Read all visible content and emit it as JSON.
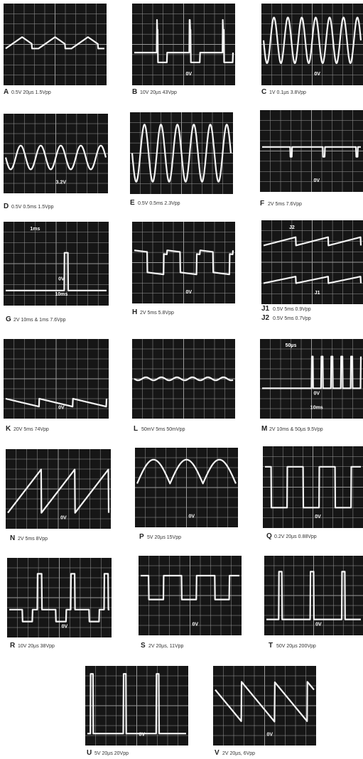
{
  "panels": [
    {
      "lines": [
        {
          "letter": "A",
          "text": "0.5V 20µs 1.5Vpp"
        }
      ],
      "labels": []
    },
    {
      "lines": [
        {
          "letter": "B",
          "text": "10V 20µs 43Vpp"
        }
      ],
      "labels": [
        "0V"
      ]
    },
    {
      "lines": [
        {
          "letter": "C",
          "text": "1V 0.1µs 3.8Vpp"
        }
      ],
      "labels": [
        "0V"
      ]
    },
    {
      "lines": [
        {
          "letter": "D",
          "text": "0.5V 0.5ms 1.5Vpp"
        }
      ],
      "labels": [
        "3.2V"
      ]
    },
    {
      "lines": [
        {
          "letter": "E",
          "text": "0.5V 0.5ms 2.3Vpp"
        }
      ],
      "labels": []
    },
    {
      "lines": [
        {
          "letter": "F",
          "text": "2V 5ms 7.6Vpp"
        }
      ],
      "labels": [
        "0V"
      ]
    },
    {
      "lines": [
        {
          "letter": "G",
          "text": "2V 10ms & 1ms 7.6Vpp"
        }
      ],
      "labels": [
        "10ms",
        "1ms",
        "0V"
      ]
    },
    {
      "lines": [
        {
          "letter": "H",
          "text": "2V 5ms 5.8Vpp"
        }
      ],
      "labels": [
        "0V"
      ]
    },
    {
      "lines": [
        {
          "letter": "J1",
          "text": "0.5V 5ms 0.9Vpp"
        },
        {
          "letter": "J2",
          "text": "0.5V 5ms 0.7Vpp"
        }
      ],
      "labels": [
        "J1",
        "J2"
      ]
    },
    {
      "lines": [
        {
          "letter": "K",
          "text": "20V 5ms 74Vpp"
        }
      ],
      "labels": [
        "0V"
      ]
    },
    {
      "lines": [
        {
          "letter": "L",
          "text": "50mV 5ms 50mVpp"
        }
      ],
      "labels": []
    },
    {
      "lines": [
        {
          "letter": "M",
          "text": "2V 10ms & 50µs 9.5Vpp"
        }
      ],
      "labels": [
        "10ms",
        "50µs",
        "0V"
      ]
    },
    {
      "lines": [
        {
          "letter": "N",
          "text": "2V 5ms 8Vpp"
        }
      ],
      "labels": [
        "0V"
      ]
    },
    {
      "lines": [
        {
          "letter": "P",
          "text": "5V 20µs 15Vpp"
        }
      ],
      "labels": [
        "0V"
      ]
    },
    {
      "lines": [
        {
          "letter": "Q",
          "text": "0.2V 20µs 0.88Vpp"
        }
      ],
      "labels": [
        "0V"
      ]
    },
    {
      "lines": [
        {
          "letter": "R",
          "text": "10V 20µs 38Vpp"
        }
      ],
      "labels": [
        "0V"
      ]
    },
    {
      "lines": [
        {
          "letter": "S",
          "text": "2V 20µs, 11Vpp"
        }
      ],
      "labels": [
        "0V"
      ]
    },
    {
      "lines": [
        {
          "letter": "T",
          "text": "50V 20µs 200Vpp"
        }
      ],
      "labels": [
        "0V"
      ]
    },
    {
      "lines": [
        {
          "letter": "U",
          "text": "5V 20µs 20Vpp"
        }
      ],
      "labels": [
        "0V"
      ]
    },
    {
      "lines": [
        {
          "letter": "V",
          "text": "2V 20µs, 6Vpp"
        }
      ],
      "labels": [
        "0V"
      ]
    }
  ]
}
